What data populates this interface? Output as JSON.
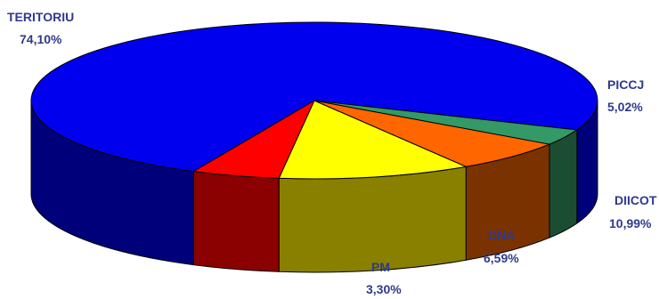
{
  "chart_data": {
    "type": "pie",
    "style": "3d-exploded-none",
    "slices": [
      {
        "category": "TERITORIU",
        "value": 74.1,
        "label": "74,10%",
        "color": "#0000ee",
        "side_color": "#00007a"
      },
      {
        "category": "PICCJ",
        "value": 5.02,
        "label": "5,02%",
        "color": "#ff0000",
        "side_color": "#8b0000"
      },
      {
        "category": "DIICOT",
        "value": 10.99,
        "label": "10,99%",
        "color": "#ffff00",
        "side_color": "#8a8000"
      },
      {
        "category": "DNA",
        "value": 6.59,
        "label": "6,59%",
        "color": "#ff6600",
        "side_color": "#7a3300"
      },
      {
        "category": "PM",
        "value": 3.3,
        "label": "3,30%",
        "color": "#339966",
        "side_color": "#1b4d33"
      }
    ],
    "legend": "none",
    "label_color": "#2e3a8c"
  }
}
